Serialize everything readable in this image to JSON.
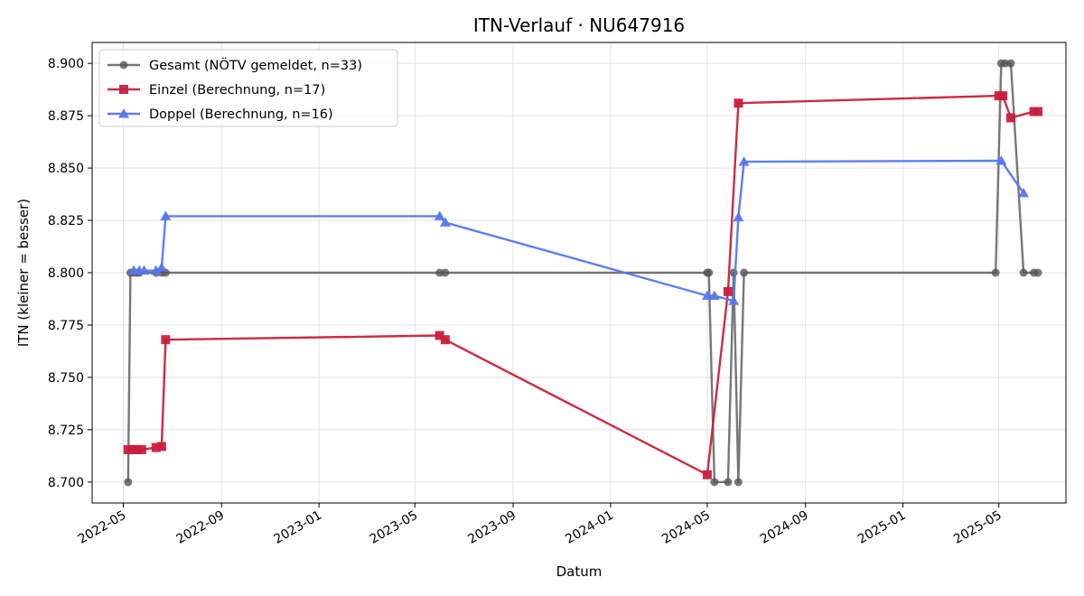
{
  "chart_data": {
    "type": "line",
    "title": "ITN-Verlauf · NU647916",
    "xlabel": "Datum",
    "ylabel": "ITN  (kleiner = besser)",
    "xlim": [
      "2022-03-23",
      "2025-07-24"
    ],
    "ylim": [
      8.69,
      8.91
    ],
    "x_ticks": [
      "2022-05",
      "2022-09",
      "2023-01",
      "2023-05",
      "2023-09",
      "2024-01",
      "2024-05",
      "2024-09",
      "2025-01",
      "2025-05"
    ],
    "y_ticks": [
      "8.700",
      "8.725",
      "8.750",
      "8.775",
      "8.800",
      "8.825",
      "8.850",
      "8.875",
      "8.900"
    ],
    "grid": true,
    "legend_position": "top-left",
    "series": [
      {
        "name": "Gesamt (NÖTV gemeldet, n=33)",
        "color": "#555555",
        "marker": "circle",
        "points": [
          [
            "2022-05-07",
            8.7
          ],
          [
            "2022-05-10",
            8.8
          ],
          [
            "2022-05-14",
            8.8
          ],
          [
            "2022-05-18",
            8.8
          ],
          [
            "2022-05-21",
            8.8
          ],
          [
            "2022-06-11",
            8.8
          ],
          [
            "2022-06-18",
            8.8
          ],
          [
            "2022-06-23",
            8.8
          ],
          [
            "2023-06-01",
            8.8
          ],
          [
            "2023-06-08",
            8.8
          ],
          [
            "2024-05-01",
            8.8
          ],
          [
            "2024-05-03",
            8.8
          ],
          [
            "2024-05-10",
            8.7
          ],
          [
            "2024-05-27",
            8.7
          ],
          [
            "2024-06-03",
            8.8
          ],
          [
            "2024-06-09",
            8.7
          ],
          [
            "2024-06-16",
            8.8
          ],
          [
            "2025-04-27",
            8.8
          ],
          [
            "2025-05-04",
            8.9
          ],
          [
            "2025-05-09",
            8.9
          ],
          [
            "2025-05-16",
            8.9
          ],
          [
            "2025-06-01",
            8.8
          ],
          [
            "2025-06-14",
            8.8
          ],
          [
            "2025-06-19",
            8.8
          ]
        ]
      },
      {
        "name": "Einzel (Berechnung, n=17)",
        "color": "#c8203c",
        "marker": "square",
        "points": [
          [
            "2022-05-07",
            8.7155
          ],
          [
            "2022-05-12",
            8.7155
          ],
          [
            "2022-05-18",
            8.7155
          ],
          [
            "2022-05-24",
            8.7155
          ],
          [
            "2022-06-11",
            8.7165
          ],
          [
            "2022-06-18",
            8.717
          ],
          [
            "2022-06-23",
            8.768
          ],
          [
            "2023-06-01",
            8.77
          ],
          [
            "2023-06-08",
            8.768
          ],
          [
            "2024-05-01",
            8.7035
          ],
          [
            "2024-05-27",
            8.791
          ],
          [
            "2024-06-09",
            8.881
          ],
          [
            "2025-05-01",
            8.8845
          ],
          [
            "2025-05-06",
            8.8845
          ],
          [
            "2025-05-16",
            8.874
          ],
          [
            "2025-06-14",
            8.877
          ],
          [
            "2025-06-19",
            8.877
          ]
        ]
      },
      {
        "name": "Doppel (Berechnung, n=16)",
        "color": "#5577ee",
        "marker": "triangle",
        "points": [
          [
            "2022-05-14",
            8.801
          ],
          [
            "2022-05-21",
            8.801
          ],
          [
            "2022-05-27",
            8.801
          ],
          [
            "2022-06-11",
            8.801
          ],
          [
            "2022-06-18",
            8.8025
          ],
          [
            "2022-06-23",
            8.827
          ],
          [
            "2023-06-01",
            8.827
          ],
          [
            "2023-06-08",
            8.824
          ],
          [
            "2024-05-01",
            8.789
          ],
          [
            "2024-05-10",
            8.789
          ],
          [
            "2024-06-03",
            8.7865
          ],
          [
            "2024-06-09",
            8.8265
          ],
          [
            "2024-06-16",
            8.853
          ],
          [
            "2025-05-04",
            8.8535
          ],
          [
            "2025-06-01",
            8.838
          ]
        ]
      }
    ]
  }
}
